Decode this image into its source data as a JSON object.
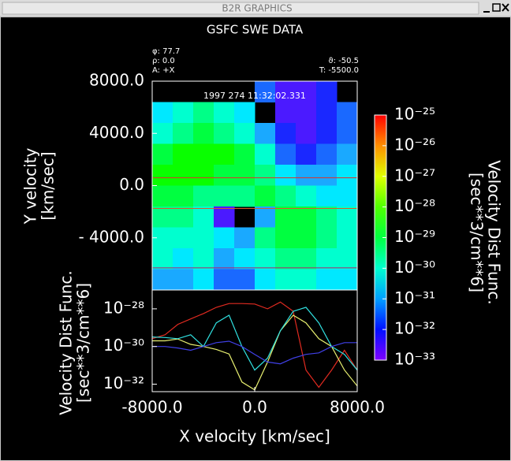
{
  "window_title": "B2R GRAPHICS",
  "chart_data": [
    {
      "type": "heatmap",
      "title": "GSFC SWE DATA",
      "annotations": [
        "φ: 77.7",
        "ρ: 0.0",
        "A: +X",
        "ϑ: -50.5",
        "T: -5500.0"
      ],
      "timestamp": "1997 274 11:32:02.331",
      "ylabel": [
        "Y velocity",
        "[km/sec]"
      ],
      "x": [
        -7200,
        -5600,
        -4000,
        -2400,
        -800,
        800,
        2400,
        4000,
        5600,
        7200
      ],
      "y": [
        7200,
        5600,
        4000,
        2400,
        800,
        -800,
        -2400,
        -4000,
        -5600,
        -7200
      ],
      "xlim": [
        -8000,
        8000
      ],
      "ylim": [
        -8000,
        8000
      ],
      "yticks": [
        {
          "value": 8000,
          "label": "8000.0"
        },
        {
          "value": 4000,
          "label": "4000.0"
        },
        {
          "value": 0,
          "label": "0.0"
        },
        {
          "value": -4000,
          "label": "- 4000.0"
        }
      ],
      "z": [
        [
          null,
          null,
          null,
          null,
          null,
          3.2e-32,
          3.2e-33,
          3.2e-33,
          1e-32,
          null
        ],
        [
          3.2e-31,
          1e-30,
          3.2e-30,
          1e-30,
          3.2e-31,
          null,
          3.2e-33,
          3.2e-33,
          1e-32,
          3.2e-32
        ],
        [
          1e-30,
          3.2e-30,
          1e-29,
          3.2e-30,
          1e-30,
          1e-31,
          1e-32,
          3.2e-33,
          1e-32,
          3.2e-32
        ],
        [
          1e-29,
          3.2e-29,
          3.2e-29,
          3.2e-29,
          1e-29,
          1e-30,
          3.2e-32,
          1e-32,
          3.2e-32,
          1e-31
        ],
        [
          3.2e-29,
          3.2e-29,
          3.2e-29,
          1e-29,
          1e-29,
          3.2e-30,
          3.2e-31,
          1e-31,
          1e-31,
          3.2e-31
        ],
        [
          1e-29,
          1e-29,
          3.2e-30,
          3.2e-30,
          3.2e-30,
          1e-29,
          3.2e-30,
          1e-30,
          3.2e-31,
          3.2e-31
        ],
        [
          3.2e-30,
          3.2e-30,
          1e-30,
          3.2e-33,
          null,
          1e-31,
          1e-29,
          1e-29,
          3.2e-30,
          1e-30
        ],
        [
          1e-30,
          1e-30,
          1e-30,
          3.2e-31,
          1e-31,
          3.2e-30,
          1e-29,
          1e-29,
          3.2e-30,
          1e-30
        ],
        [
          1e-30,
          3.2e-31,
          1e-30,
          1e-31,
          3.2e-31,
          1e-30,
          3.2e-30,
          3.2e-30,
          1e-30,
          1e-30
        ],
        [
          1e-31,
          1e-31,
          3.2e-31,
          3.2e-32,
          3.2e-32,
          3.2e-31,
          1e-30,
          1e-30,
          3.2e-31,
          3.2e-31
        ]
      ],
      "cuts": [
        {
          "value": 600,
          "color": "#e0302a"
        },
        {
          "value": -1750,
          "color": "#d85a2c"
        },
        {
          "value": -6300,
          "color": "#b02070"
        }
      ],
      "colorbar_label": [
        "Velocity Dist Func.",
        "[sec**3/cm**6]"
      ],
      "zlim": [
        1e-33,
        1e-25
      ],
      "zticks": [
        {
          "value": 1e-25,
          "label": "10⁻²⁵"
        },
        {
          "value": 1e-26,
          "label": "10⁻²⁶"
        },
        {
          "value": 1e-27,
          "label": "10⁻²⁷"
        },
        {
          "value": 1e-28,
          "label": "10⁻²⁸"
        },
        {
          "value": 1e-29,
          "label": "10⁻²⁹"
        },
        {
          "value": 1e-30,
          "label": "10⁻³⁰"
        },
        {
          "value": 1e-31,
          "label": "10⁻³¹"
        },
        {
          "value": 1e-32,
          "label": "10⁻³²"
        },
        {
          "value": 1e-33,
          "label": "10⁻³³"
        }
      ]
    },
    {
      "type": "line",
      "log": true,
      "ylabel": [
        "Velocity Dist Func.",
        "[sec**3/cm**6]"
      ],
      "xlabel": "X velocity  [km/sec]",
      "x": [
        -8000,
        -7000,
        -6000,
        -5000,
        -4000,
        -3000,
        -2000,
        -1000,
        0,
        1000,
        2000,
        3000,
        4000,
        5000,
        6000,
        7000,
        8000
      ],
      "xlim": [
        -8000,
        8000
      ],
      "xticks": [
        {
          "value": -8000,
          "label": "-8000.0"
        },
        {
          "value": 0,
          "label": "0.0"
        },
        {
          "value": 8000,
          "label": "8000.0"
        }
      ],
      "ylim": [
        4e-33,
        1e-27
      ],
      "yticks": [
        {
          "value": 1e-28,
          "label": "10⁻²⁸"
        },
        {
          "value": 1e-30,
          "label": "10⁻³⁰"
        },
        {
          "value": 1e-32,
          "label": "10⁻³²"
        }
      ],
      "series": [
        {
          "color": "#e02a20",
          "values": [
            2.6e-30,
            4.2e-30,
            1.5e-29,
            2.9e-29,
            5.6e-29,
            1.2e-28,
            1.9e-28,
            1.9e-28,
            1.8e-28,
            1e-28,
            2.3e-28,
            7.4e-29,
            5.6e-32,
            6.8e-33,
            5.6e-32,
            6.3e-31,
            5.6e-32
          ]
        },
        {
          "color": "#e8f070",
          "values": [
            2e-30,
            2e-30,
            2.5e-30,
            1.3e-30,
            1e-30,
            7e-31,
            4e-31,
            1.3e-32,
            5e-33,
            1.5e-31,
            6.8e-30,
            4.6e-29,
            1.8e-29,
            2.6e-30,
            1e-30,
            5.6e-32,
            8e-33
          ]
        },
        {
          "color": "#30e0e0",
          "values": [
            3.2e-30,
            3e-30,
            2.6e-30,
            4.2e-30,
            1e-30,
            1.8e-29,
            4.6e-29,
            1e-30,
            5.6e-32,
            2.4e-31,
            6.8e-30,
            7.4e-29,
            1.2e-28,
            1.8e-29,
            1e-30,
            3.8e-31,
            5.6e-32
          ]
        },
        {
          "color": "#4040e8",
          "values": [
            1e-30,
            1e-30,
            8.3e-31,
            6.3e-31,
            1e-30,
            1.6e-30,
            1.9e-30,
            1e-30,
            3.8e-31,
            1.5e-31,
            1.2e-31,
            2.4e-31,
            3.8e-31,
            4.6e-31,
            1e-30,
            1.6e-30,
            1.6e-30
          ]
        }
      ]
    }
  ]
}
